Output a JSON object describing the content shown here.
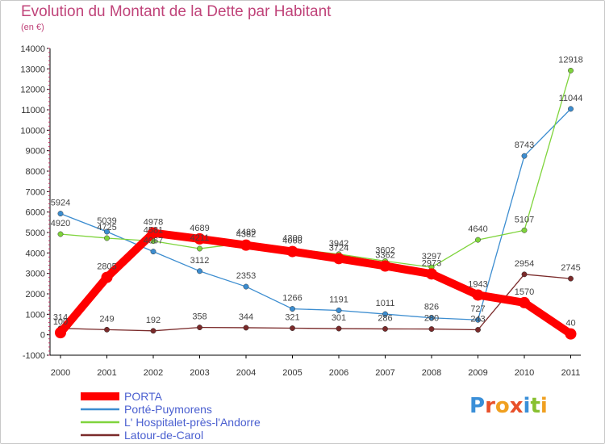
{
  "header": {
    "title": "Evolution du Montant de la Dette par Habitant",
    "unit": "(en €)"
  },
  "logo": {
    "text": "Proxiti"
  },
  "chart_data": {
    "type": "line",
    "title": "Evolution du Montant de la Dette par Habitant",
    "subtitle": "(en €)",
    "x": [
      "2000",
      "2001",
      "2002",
      "2003",
      "2004",
      "2005",
      "2006",
      "2007",
      "2008",
      "2009",
      "2010",
      "2011"
    ],
    "ylim": [
      -1000,
      14000
    ],
    "yticks": [
      -1000,
      0,
      1000,
      2000,
      3000,
      4000,
      5000,
      6000,
      7000,
      8000,
      9000,
      10000,
      11000,
      12000,
      13000,
      14000
    ],
    "legend_position": "bottom-left",
    "series": [
      {
        "name": "PORTA",
        "color": "#ff0000",
        "values": [
          100,
          2805,
          4978,
          4689,
          4382,
          4068,
          3724,
          3362,
          2973,
          1943,
          1570,
          40
        ],
        "labels": [
          "100",
          "2805",
          "4978",
          "4689",
          "4382",
          "4068",
          "3724",
          "3362",
          "2973",
          "1943",
          "1570",
          "40"
        ]
      },
      {
        "name": "Porté-Puymorens",
        "color": "#3c8dd0",
        "values": [
          5924,
          5039,
          4067,
          3112,
          2353,
          1266,
          1191,
          1011,
          826,
          727,
          8743,
          11044
        ],
        "labels": [
          "5924",
          "5039",
          "4067",
          "3112",
          "2353",
          "1266",
          "1191",
          "1011",
          "826",
          "727",
          "8743",
          "11044"
        ]
      },
      {
        "name": "L' Hospitalet-près-l'Andorre",
        "color": "#7fd43c",
        "values": [
          4920,
          4725,
          4581,
          4211,
          4489,
          4200,
          3942,
          3602,
          3297,
          4640,
          5107,
          12918
        ],
        "labels": [
          "4920",
          "4725",
          "4581",
          "4211",
          "4489",
          "4200",
          "3942",
          "3602",
          "3297",
          "4640",
          "5107",
          "12918"
        ]
      },
      {
        "name": "Latour-de-Carol",
        "color": "#7a2a2a",
        "values": [
          314,
          249,
          192,
          358,
          344,
          321,
          301,
          286,
          280,
          243,
          2954,
          2745
        ],
        "labels": [
          "314",
          "249",
          "192",
          "358",
          "344",
          "321",
          "301",
          "286",
          "280",
          "243",
          "2954",
          "2745"
        ]
      }
    ]
  }
}
